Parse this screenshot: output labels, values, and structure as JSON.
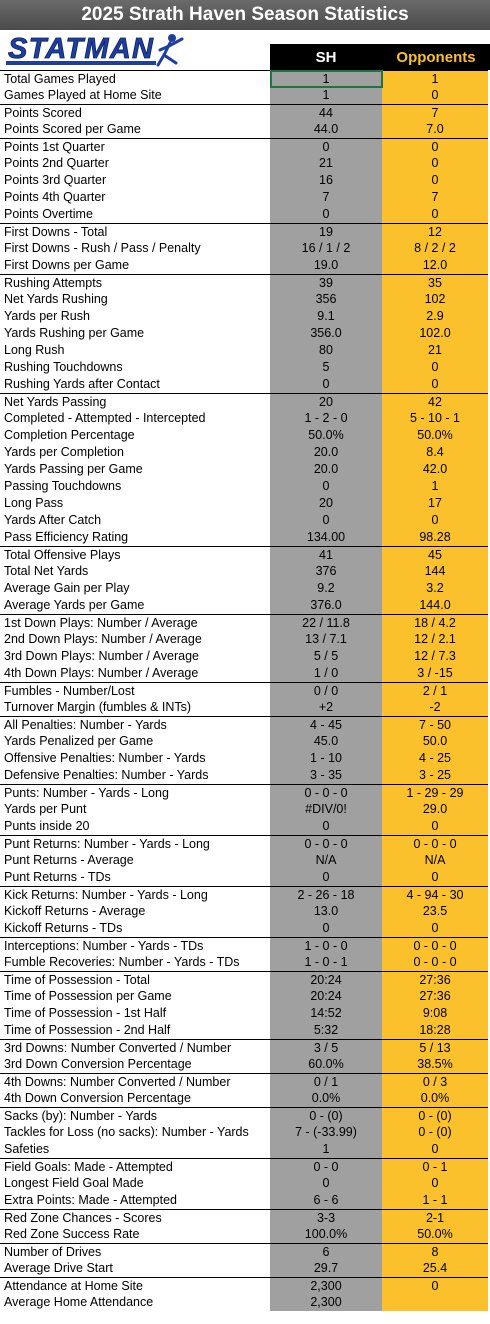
{
  "title": "2025 Strath Haven Season Statistics",
  "logo": "STATMAN",
  "header": [
    "SH",
    "Opponents"
  ],
  "groups": [
    [
      [
        "Total Games Played",
        "1",
        "1"
      ],
      [
        "Games Played at Home Site",
        "1",
        "0"
      ]
    ],
    [
      [
        "Points Scored",
        "44",
        "7"
      ],
      [
        "Points Scored per Game",
        "44.0",
        "7.0"
      ]
    ],
    [
      [
        "Points 1st Quarter",
        "0",
        "0"
      ],
      [
        "Points 2nd Quarter",
        "21",
        "0"
      ],
      [
        "Points 3rd Quarter",
        "16",
        "0"
      ],
      [
        "Points 4th Quarter",
        "7",
        "7"
      ],
      [
        "Points Overtime",
        "0",
        "0"
      ]
    ],
    [
      [
        "First Downs - Total",
        "19",
        "12"
      ],
      [
        "First Downs - Rush / Pass / Penalty",
        "16 / 1 / 2",
        "8 / 2 / 2"
      ],
      [
        "First Downs per Game",
        "19.0",
        "12.0"
      ]
    ],
    [
      [
        "Rushing Attempts",
        "39",
        "35"
      ],
      [
        "Net Yards Rushing",
        "356",
        "102"
      ],
      [
        "Yards per Rush",
        "9.1",
        "2.9"
      ],
      [
        "Yards Rushing per Game",
        "356.0",
        "102.0"
      ],
      [
        "Long Rush",
        "80",
        "21"
      ],
      [
        "Rushing Touchdowns",
        "5",
        "0"
      ],
      [
        "Rushing Yards after Contact",
        "0",
        "0"
      ]
    ],
    [
      [
        "Net Yards Passing",
        "20",
        "42"
      ],
      [
        "Completed - Attempted - Intercepted",
        "1 - 2 - 0",
        "5 - 10 - 1"
      ],
      [
        "Completion Percentage",
        "50.0%",
        "50.0%"
      ],
      [
        "Yards per Completion",
        "20.0",
        "8.4"
      ],
      [
        "Yards Passing per Game",
        "20.0",
        "42.0"
      ],
      [
        "Passing Touchdowns",
        "0",
        "1"
      ],
      [
        "Long Pass",
        "20",
        "17"
      ],
      [
        "Yards After Catch",
        "0",
        "0"
      ],
      [
        "Pass Efficiency Rating",
        "134.00",
        "98.28"
      ]
    ],
    [
      [
        "Total Offensive Plays",
        "41",
        "45"
      ],
      [
        "Total Net Yards",
        "376",
        "144"
      ],
      [
        "Average Gain per Play",
        "9.2",
        "3.2"
      ],
      [
        "Average Yards per Game",
        "376.0",
        "144.0"
      ]
    ],
    [
      [
        "1st Down Plays:  Number / Average",
        "22 / 11.8",
        "18 / 4.2"
      ],
      [
        "2nd Down Plays:  Number / Average",
        "13 / 7.1",
        "12 / 2.1"
      ],
      [
        "3rd Down Plays:  Number / Average",
        "5 / 5",
        "12 / 7.3"
      ],
      [
        "4th Down Plays:  Number / Average",
        "1 / 0",
        "3 / -15"
      ]
    ],
    [
      [
        "Fumbles - Number/Lost",
        "0 / 0",
        "2 / 1"
      ],
      [
        "Turnover Margin (fumbles & INTs)",
        "+2",
        "-2"
      ]
    ],
    [
      [
        "All Penalties:  Number - Yards",
        "4 - 45",
        "7 - 50"
      ],
      [
        "Yards Penalized per Game",
        "45.0",
        "50.0"
      ],
      [
        "Offensive Penalties:  Number - Yards",
        "1 - 10",
        "4 - 25"
      ],
      [
        "Defensive Penalties:  Number - Yards",
        "3 - 35",
        "3 - 25"
      ]
    ],
    [
      [
        "Punts:  Number - Yards - Long",
        "0 - 0 - 0",
        "1 - 29 - 29"
      ],
      [
        "Yards per Punt",
        "#DIV/0!",
        "29.0"
      ],
      [
        "Punts inside 20",
        "0",
        "0"
      ]
    ],
    [
      [
        "Punt Returns:  Number - Yards - Long",
        "0 - 0 - 0",
        "0 - 0 - 0"
      ],
      [
        "Punt Returns - Average",
        "N/A",
        "N/A"
      ],
      [
        "Punt Returns - TDs",
        "0",
        "0"
      ]
    ],
    [
      [
        "Kick Returns:  Number - Yards - Long",
        "2 - 26 - 18",
        "4 - 94 - 30"
      ],
      [
        "Kickoff Returns - Average",
        "13.0",
        "23.5"
      ],
      [
        "Kickoff Returns - TDs",
        "0",
        "0"
      ]
    ],
    [
      [
        "Interceptions: Number - Yards - TDs",
        "1 - 0 - 0",
        "0 - 0 - 0"
      ],
      [
        "Fumble Recoveries: Number - Yards - TDs",
        "1 - 0 - 1",
        "0 - 0 - 0"
      ]
    ],
    [
      [
        "Time of Possession - Total",
        "20:24",
        "27:36"
      ],
      [
        "Time of Possession per Game",
        "20:24",
        "27:36"
      ],
      [
        "Time of Possession - 1st Half",
        "14:52",
        "9:08"
      ],
      [
        "Time of Possession - 2nd Half",
        "5:32",
        "18:28"
      ]
    ],
    [
      [
        "3rd Downs:  Number Converted / Number",
        "3 / 5",
        "5 / 13"
      ],
      [
        "3rd Down Conversion Percentage",
        "60.0%",
        "38.5%"
      ]
    ],
    [
      [
        "4th Downs:  Number Converted / Number",
        "0 / 1",
        "0 / 3"
      ],
      [
        "4th Down Conversion Percentage",
        "0.0%",
        "0.0%"
      ]
    ],
    [
      [
        "Sacks (by):  Number - Yards",
        "0 - (0)",
        "0 - (0)"
      ],
      [
        "Tackles for Loss (no sacks):  Number - Yards",
        "7 - (-33.99)",
        "0 - (0)"
      ],
      [
        "Safeties",
        "1",
        "0"
      ]
    ],
    [
      [
        "Field Goals:  Made - Attempted",
        "0 - 0",
        "0 - 1"
      ],
      [
        "Longest Field Goal Made",
        "0",
        "0"
      ],
      [
        "Extra Points:  Made - Attempted",
        "6 - 6",
        "1 - 1"
      ]
    ],
    [
      [
        "Red Zone Chances - Scores",
        "3-3",
        "2-1"
      ],
      [
        "Red Zone Success Rate",
        "100.0%",
        "50.0%"
      ]
    ],
    [
      [
        "Number of Drives",
        "6",
        "8"
      ],
      [
        "Average Drive Start",
        "29.7",
        "25.4"
      ]
    ],
    [
      [
        "Attendance at Home Site",
        "2,300",
        "0"
      ],
      [
        "Average Home Attendance",
        "2,300",
        null
      ]
    ]
  ]
}
